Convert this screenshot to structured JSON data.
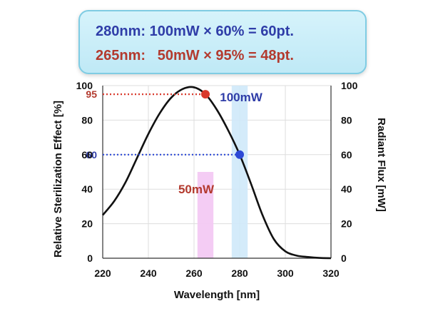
{
  "callout": {
    "line1": "280nm: 100mW × 60% = 60pt.",
    "line2": "265nm:   50mW × 95% = 48pt.",
    "line1_color": "#2f3da8",
    "line2_color": "#b33a2e"
  },
  "chart_data": {
    "type": "line",
    "xlabel": "Wavelength [nm]",
    "ylabel": "Relative Sterilization Effect [%]",
    "y2label": "Radiant Flux [mW]",
    "xlim": [
      220,
      320
    ],
    "ylim": [
      0,
      100
    ],
    "y2lim": [
      0,
      100
    ],
    "xticks": [
      "220",
      "240",
      "260",
      "280",
      "300",
      "320"
    ],
    "yticks": [
      "0",
      "20",
      "40",
      "60",
      "80",
      "100"
    ],
    "y2ticks": [
      "0",
      "20",
      "40",
      "60",
      "80",
      "100"
    ],
    "grid": true,
    "series": [
      {
        "color": "#111111",
        "x": [
          220,
          225,
          230,
          235,
          240,
          245,
          250,
          255,
          260,
          265,
          270,
          275,
          280,
          285,
          290,
          295,
          300,
          305,
          310,
          315,
          320
        ],
        "y": [
          25,
          33,
          44,
          58,
          72,
          84,
          93,
          98,
          99,
          95,
          86,
          74,
          60,
          43,
          25,
          11,
          4,
          1.5,
          0.7,
          0.2,
          0
        ]
      }
    ],
    "bars": [
      {
        "label": "50mW",
        "x_center": 265,
        "width": 7,
        "value": 50,
        "color": "#f3c6f3",
        "label_color": "#b33a2e"
      },
      {
        "label": "100mW",
        "x_center": 280,
        "width": 7,
        "value": 100,
        "color": "#cfe9fa",
        "label_color": "#2f3da8"
      }
    ],
    "markers": [
      {
        "x": 265,
        "y": 95,
        "label": "95",
        "color": "#d9392b",
        "label_color": "#b33a2e"
      },
      {
        "x": 280,
        "y": 60,
        "label": "60",
        "color": "#2d49d6",
        "label_color": "#2f3da8"
      }
    ]
  }
}
